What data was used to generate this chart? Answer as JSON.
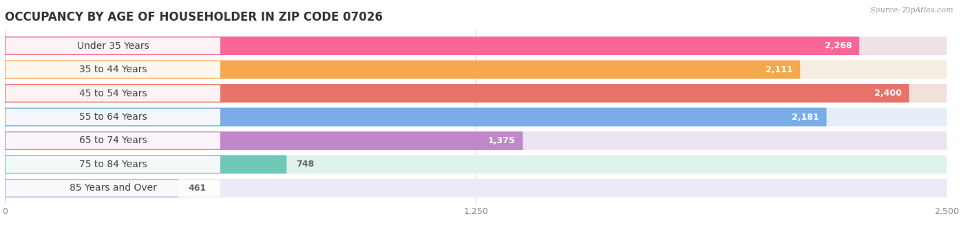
{
  "title": "OCCUPANCY BY AGE OF HOUSEHOLDER IN ZIP CODE 07026",
  "source": "Source: ZipAtlas.com",
  "categories": [
    "Under 35 Years",
    "35 to 44 Years",
    "45 to 54 Years",
    "55 to 64 Years",
    "65 to 74 Years",
    "75 to 84 Years",
    "85 Years and Over"
  ],
  "values": [
    2268,
    2111,
    2400,
    2181,
    1375,
    748,
    461
  ],
  "bar_colors": [
    "#F76899",
    "#F5A84E",
    "#E8736A",
    "#7AACE8",
    "#C088C8",
    "#6DC8B8",
    "#B8B0E8"
  ],
  "bar_bg_colors": [
    "#F0E0E8",
    "#F5EDE0",
    "#F2E0DC",
    "#E4EEF8",
    "#EDE4F2",
    "#E0F2EE",
    "#ECEAF8"
  ],
  "row_bg_color": "#EFEFEF",
  "white": "#FFFFFF",
  "xlim": [
    0,
    2500
  ],
  "xticks": [
    0,
    1250,
    2500
  ],
  "title_fontsize": 12,
  "label_fontsize": 10,
  "value_fontsize": 9,
  "background_color": "#FFFFFF",
  "value_threshold": 0.48
}
